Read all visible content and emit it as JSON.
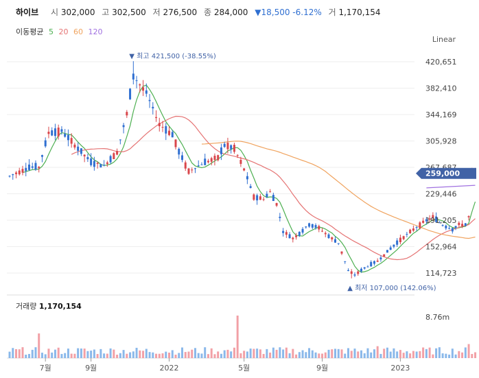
{
  "header": {
    "name": "하이브",
    "open_label": "시",
    "open": "302,000",
    "high_label": "고",
    "high": "302,500",
    "low_label": "저",
    "low": "276,500",
    "close_label": "종",
    "close": "284,000",
    "change": "▼18,500 -6.12%",
    "volume_label": "거",
    "volume": "1,170,154"
  },
  "ma": {
    "label": "이동평균",
    "items": [
      {
        "period": "5",
        "color": "#4caf50"
      },
      {
        "period": "20",
        "color": "#e57373"
      },
      {
        "period": "60",
        "color": "#f0a35e"
      },
      {
        "period": "120",
        "color": "#a070e0"
      }
    ]
  },
  "scale_mode": "Linear",
  "colors": {
    "up": "#d9464b",
    "down": "#2f6fd1",
    "vol_up": "#f2a0a6",
    "vol_down": "#8ab8ea",
    "price_tag": "#4062a6"
  },
  "chart_data": {
    "type": "candlestick",
    "price_axis": {
      "ticks": [
        420651,
        382410,
        344169,
        305928,
        267687,
        229446,
        191205,
        152964,
        114723
      ],
      "tick_labels": [
        "420,651",
        "382,410",
        "344,169",
        "305,928",
        "267,687",
        "229,446",
        "191,205",
        "152,964",
        "114,723"
      ]
    },
    "x_ticks": [
      {
        "label": "7월",
        "index": 11
      },
      {
        "label": "9월",
        "index": 25
      },
      {
        "label": "2022",
        "index": 49
      },
      {
        "label": "5월",
        "index": 72
      },
      {
        "label": "9월",
        "index": 96
      },
      {
        "label": "2023",
        "index": 120
      }
    ],
    "current_price": {
      "value": 259000,
      "label": "259,000"
    },
    "high_annotation": {
      "index": 38,
      "value": 421500,
      "text": "▼ 최고 421,500 (-38.55%)"
    },
    "low_annotation": {
      "index": 105,
      "value": 107000,
      "text": "▲ 최저 107,000 (142.06%)"
    },
    "volume_panel": {
      "label": "거래량",
      "value_label": "1,170,154",
      "axis_label": "8.76m",
      "axis_value": 8760000
    }
  }
}
